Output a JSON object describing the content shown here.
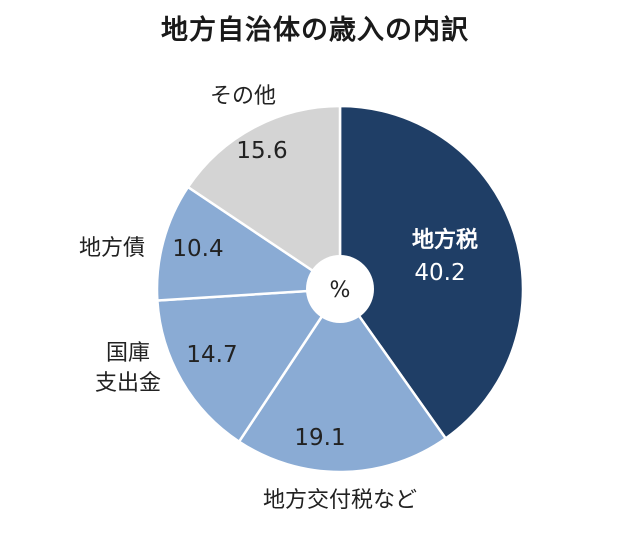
{
  "chart_data": {
    "type": "pie",
    "title": "地方自治体の歳入の内訳",
    "unit": "%",
    "slices": [
      {
        "label": "地方税",
        "value": 40.2,
        "color": "#1f3e66"
      },
      {
        "label": "地方交付税など",
        "value": 19.1,
        "color": "#8aabd4"
      },
      {
        "label": "国庫支出金",
        "value": 14.7,
        "color": "#8aabd4"
      },
      {
        "label": "地方債",
        "value": 10.4,
        "color": "#8aabd4"
      },
      {
        "label": "その他",
        "value": 15.6,
        "color": "#d4d4d4"
      }
    ]
  }
}
